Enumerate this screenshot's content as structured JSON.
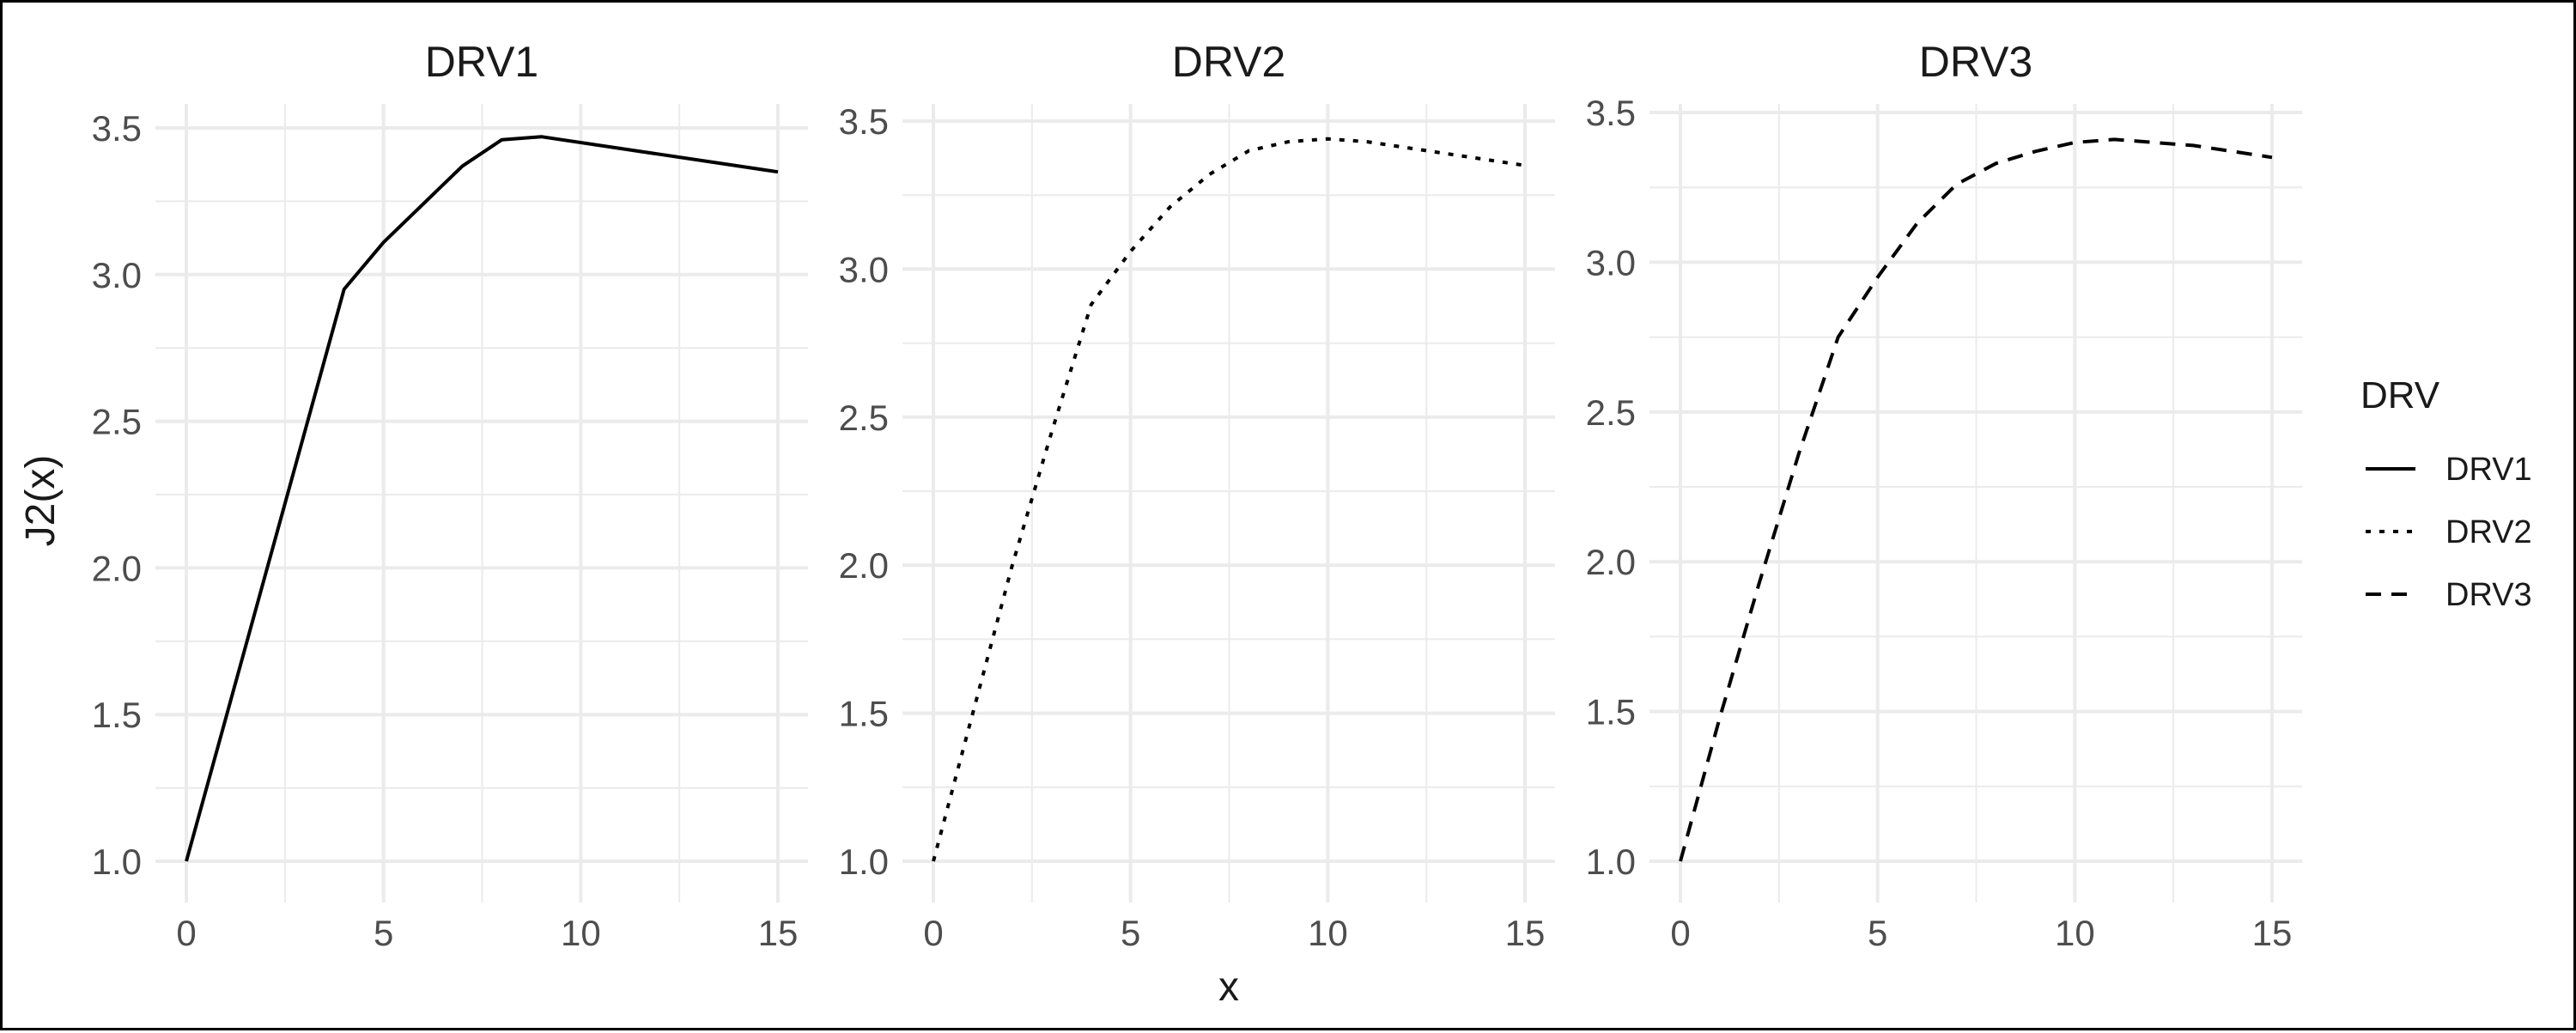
{
  "chart_data": {
    "type": "line",
    "xlabel": "x",
    "ylabel": "J2(x)",
    "legend": {
      "title": "DRV",
      "position": "right",
      "entries": [
        {
          "name": "DRV1",
          "linetype": "solid"
        },
        {
          "name": "DRV2",
          "linetype": "dotted"
        },
        {
          "name": "DRV3",
          "linetype": "dashed"
        }
      ]
    },
    "grid": true,
    "panels": [
      {
        "title": "DRV1",
        "linetype": "solid",
        "xlim": [
          0,
          15
        ],
        "ylim": [
          1.0,
          3.5
        ],
        "x_ticks": [
          "0",
          "5",
          "10",
          "15"
        ],
        "y_ticks": [
          "1.0",
          "1.5",
          "2.0",
          "2.5",
          "3.0",
          "3.5"
        ],
        "x": [
          0,
          4,
          5,
          7,
          8,
          9,
          15
        ],
        "y": [
          1.0,
          2.95,
          3.11,
          3.37,
          3.46,
          3.47,
          3.35
        ]
      },
      {
        "title": "DRV2",
        "linetype": "dotted",
        "xlim": [
          0,
          15
        ],
        "ylim": [
          1.0,
          3.5
        ],
        "x_ticks": [
          "0",
          "5",
          "10",
          "15"
        ],
        "y_ticks": [
          "1.0",
          "1.5",
          "2.0",
          "2.5",
          "3.0",
          "3.5"
        ],
        "x": [
          0,
          1,
          2,
          3,
          4,
          5,
          6,
          7,
          8,
          9,
          10,
          11,
          12,
          13,
          14,
          15
        ],
        "y": [
          1.0,
          1.5,
          2.0,
          2.45,
          2.88,
          3.06,
          3.21,
          3.32,
          3.4,
          3.43,
          3.44,
          3.43,
          3.41,
          3.39,
          3.37,
          3.35
        ]
      },
      {
        "title": "DRV3",
        "linetype": "dashed",
        "xlim": [
          0,
          15
        ],
        "ylim": [
          1.0,
          3.5
        ],
        "x_ticks": [
          "0",
          "5",
          "10",
          "15"
        ],
        "y_ticks": [
          "1.0",
          "1.5",
          "2.0",
          "2.5",
          "3.0",
          "3.5"
        ],
        "x": [
          0,
          1,
          2,
          3,
          4,
          5,
          6,
          7,
          8,
          9,
          10,
          11,
          12,
          13,
          14,
          15
        ],
        "y": [
          1.0,
          1.48,
          1.93,
          2.36,
          2.75,
          2.95,
          3.13,
          3.26,
          3.33,
          3.37,
          3.4,
          3.41,
          3.4,
          3.39,
          3.37,
          3.35
        ]
      }
    ]
  }
}
